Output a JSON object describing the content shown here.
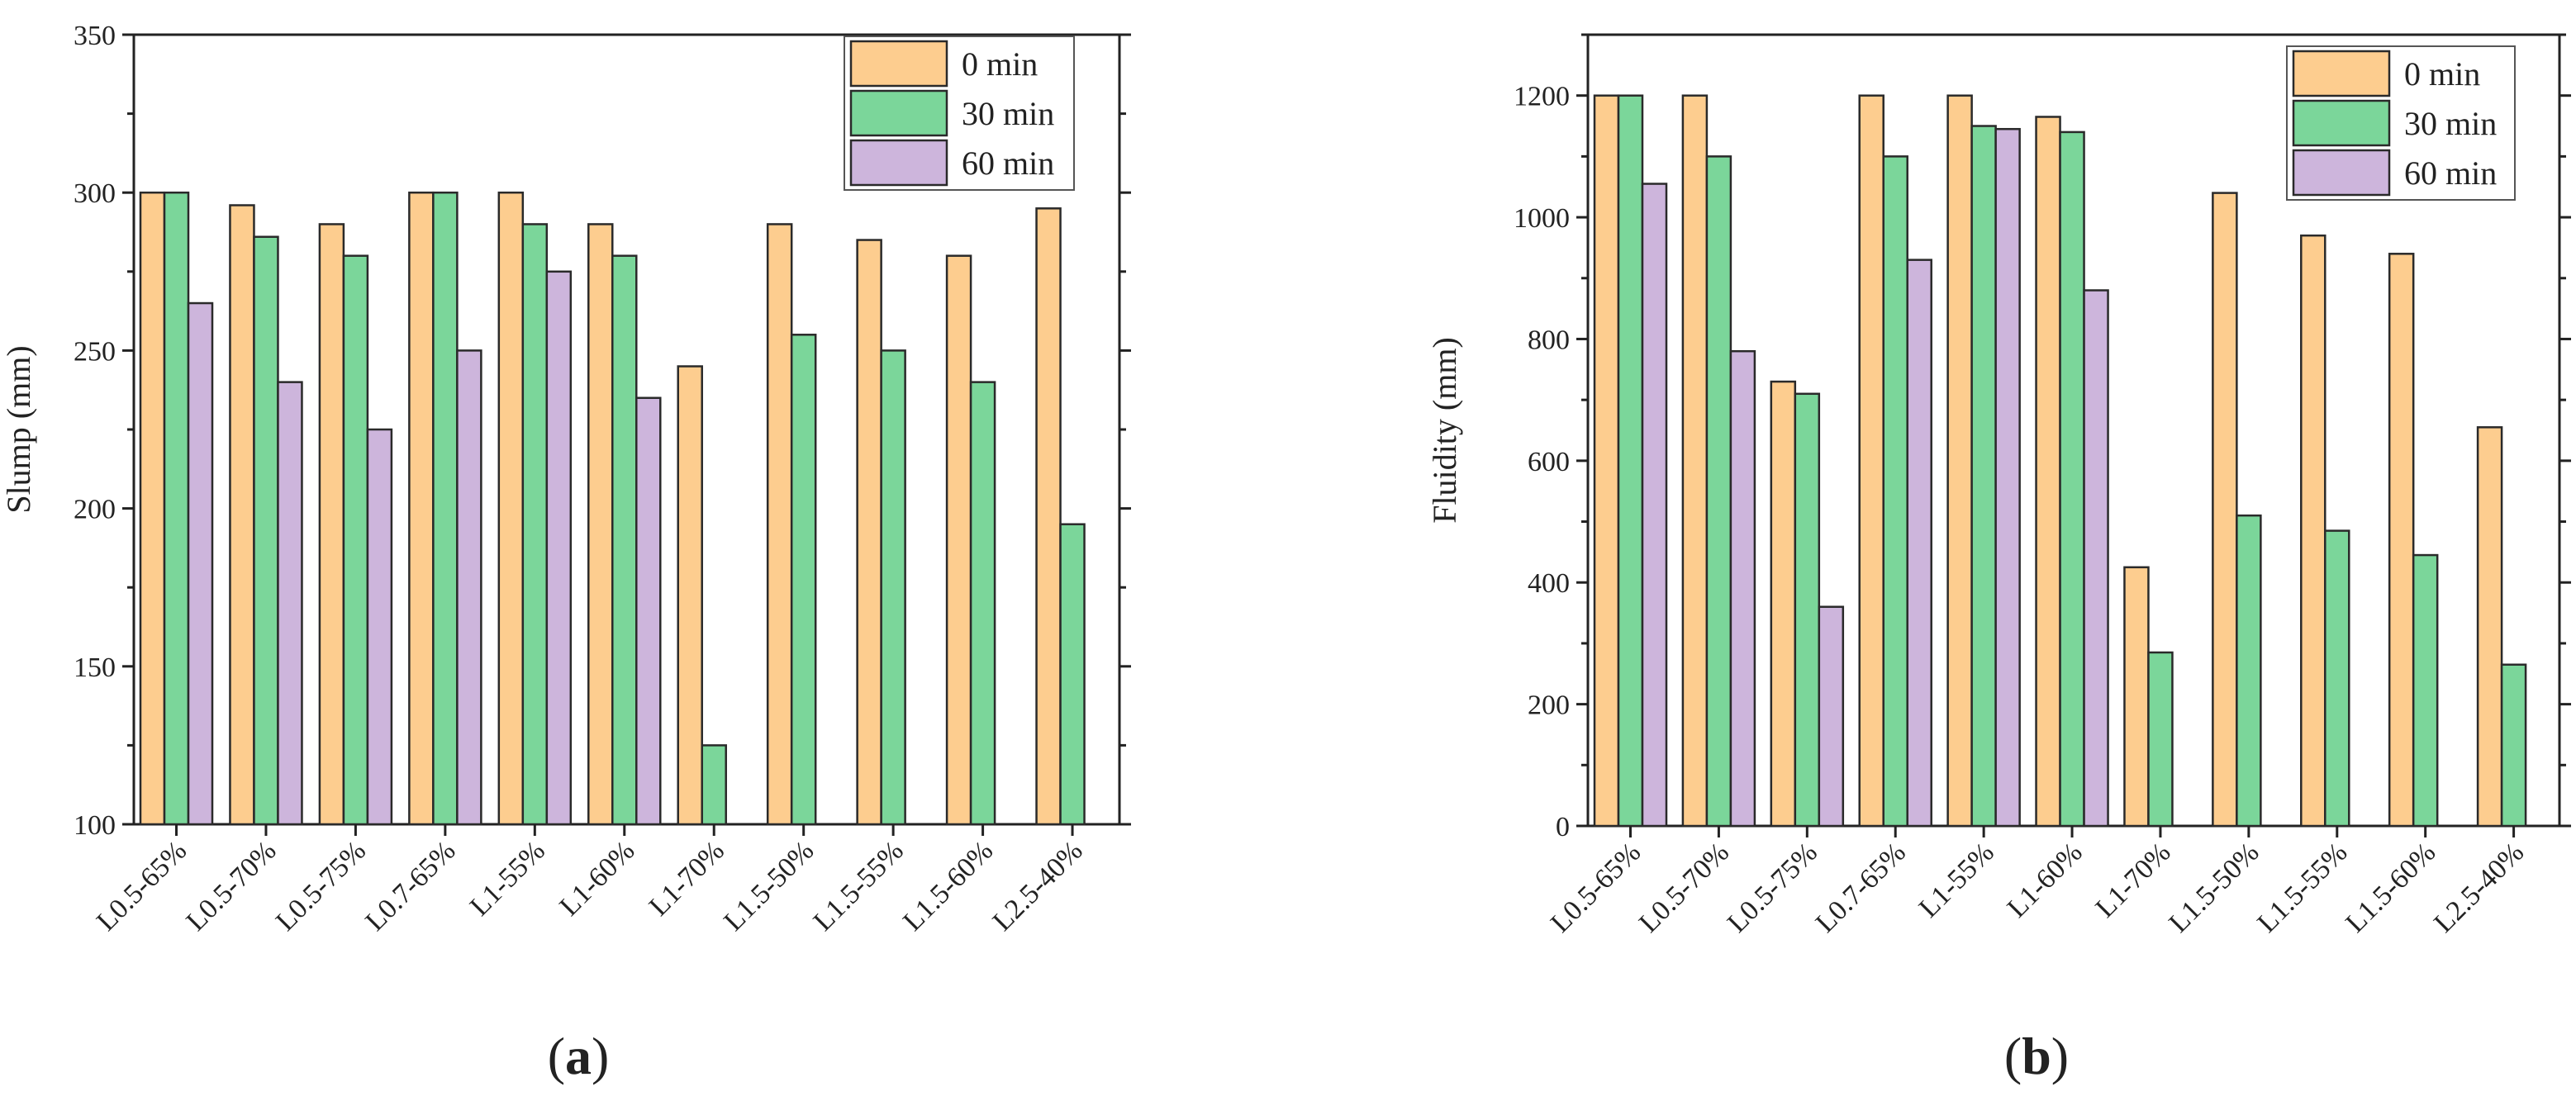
{
  "chart_data": [
    {
      "id": "slump",
      "type": "bar",
      "caption": {
        "open": "(",
        "letter": "a",
        "close": ")"
      },
      "xlabel": "",
      "ylabel": "Slump (mm)",
      "ylim": [
        100,
        350
      ],
      "yticks": [
        100,
        150,
        200,
        250,
        300,
        350
      ],
      "categories": [
        "L0.5-65%",
        "L0.5-70%",
        "L0.5-75%",
        "L0.7-65%",
        "L1-55%",
        "L1-60%",
        "L1-70%",
        "L1.5-50%",
        "L1.5-55%",
        "L1.5-60%",
        "L2.5-40%"
      ],
      "series": [
        {
          "name": "0 min",
          "color": "#FDCD8F",
          "values": [
            300,
            296,
            290,
            300,
            300,
            290,
            245,
            290,
            285,
            280,
            295
          ]
        },
        {
          "name": "30 min",
          "color": "#7BD69A",
          "values": [
            300,
            286,
            280,
            300,
            290,
            280,
            125,
            255,
            250,
            240,
            195
          ]
        },
        {
          "name": "60 min",
          "color": "#CDB5DC",
          "values": [
            265,
            240,
            225,
            250,
            275,
            235,
            null,
            null,
            null,
            null,
            null
          ]
        }
      ],
      "legend": "top-right"
    },
    {
      "id": "fluidity",
      "type": "bar",
      "caption": {
        "open": "(",
        "letter": "b",
        "close": ")"
      },
      "xlabel": "",
      "ylabel": "Fluidity (mm)",
      "ylim": [
        0,
        1300
      ],
      "yticks": [
        0,
        200,
        400,
        600,
        800,
        1000,
        1200
      ],
      "categories": [
        "L0.5-65%",
        "L0.5-70%",
        "L0.5-75%",
        "L0.7-65%",
        "L1-55%",
        "L1-60%",
        "L1-70%",
        "L1.5-50%",
        "L1.5-55%",
        "L1.5-60%",
        "L2.5-40%"
      ],
      "series": [
        {
          "name": "0 min",
          "color": "#FDCD8F",
          "values": [
            1200,
            1200,
            730,
            1200,
            1200,
            1165,
            425,
            1040,
            970,
            940,
            655
          ]
        },
        {
          "name": "30 min",
          "color": "#7BD69A",
          "values": [
            1200,
            1100,
            710,
            1100,
            1150,
            1140,
            285,
            510,
            485,
            445,
            265
          ]
        },
        {
          "name": "60 min",
          "color": "#CDB5DC",
          "values": [
            1055,
            780,
            360,
            930,
            1145,
            880,
            null,
            null,
            null,
            null,
            null
          ]
        }
      ],
      "legend": "top-right"
    }
  ]
}
